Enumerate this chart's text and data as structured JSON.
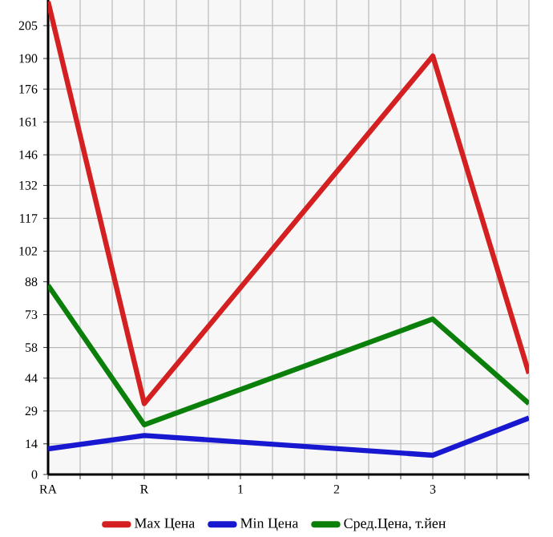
{
  "chart_data": {
    "type": "line",
    "categories": [
      "RA",
      "R",
      "1",
      "2",
      "3",
      null
    ],
    "series": [
      {
        "name": "Max Цена",
        "color": "#d42020",
        "values": [
          216,
          32.4,
          null,
          null,
          191.1,
          46.1
        ]
      },
      {
        "name": "Min Цена",
        "color": "#1818d0",
        "values": [
          11.7,
          17.8,
          null,
          null,
          8.8,
          25.8
        ]
      },
      {
        "name": "Сред.Цена, т.йен",
        "color": "#0a800a",
        "values": [
          86.4,
          22.7,
          null,
          null,
          71.0,
          32.4
        ]
      }
    ],
    "ylim": [
      0,
      216.7
    ],
    "yticks": [
      0,
      14,
      29,
      44,
      58,
      73,
      88,
      102,
      117,
      132,
      146,
      161,
      176,
      190,
      205
    ],
    "grid": true,
    "legend": "bottom",
    "marker": "none",
    "line_style": "solid"
  }
}
